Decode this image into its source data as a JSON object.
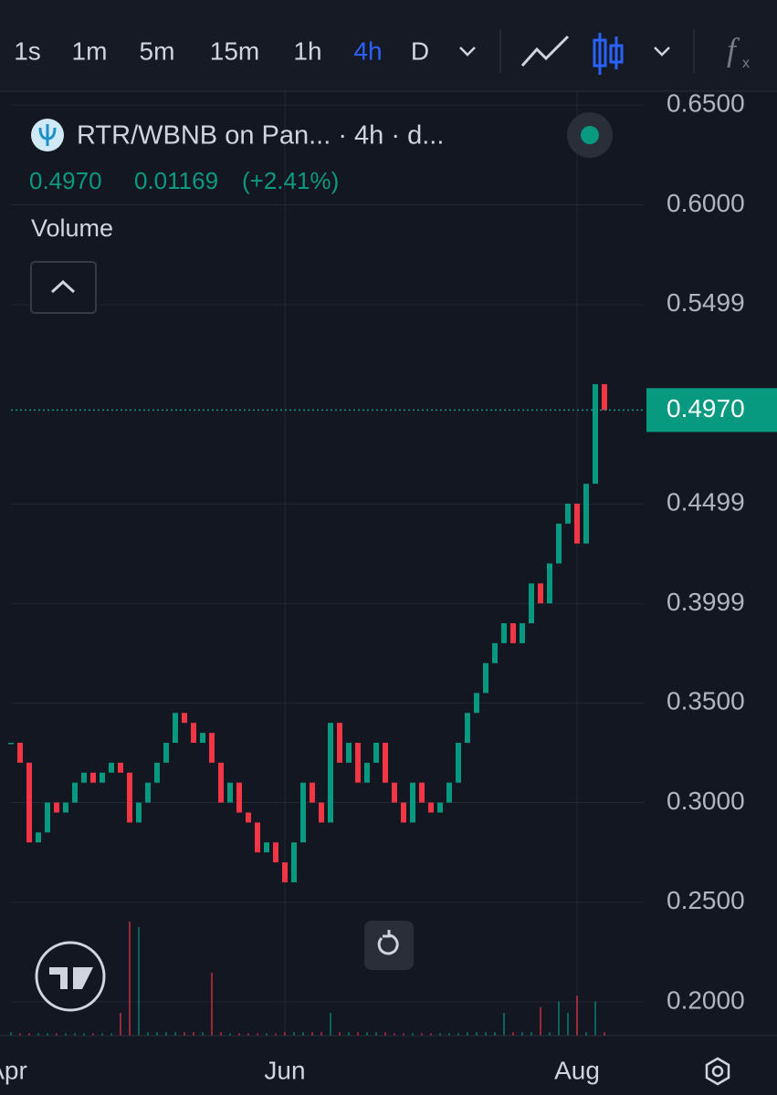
{
  "toolbar": {
    "intervals": [
      "1s",
      "1m",
      "5m",
      "15m",
      "1h",
      "4h",
      "D"
    ],
    "active": "4h"
  },
  "chart_data": {
    "type": "candlestick",
    "title": "RTR/WBNB on Pan... · 4h · d...",
    "last": {
      "value": 0.497,
      "label": "0.4970"
    },
    "change": "0.01169",
    "change_pct": "(+2.41%)",
    "volume_label": "Volume",
    "values": [
      0.33,
      0.32,
      0.28,
      0.285,
      0.3,
      0.295,
      0.3,
      0.31,
      0.315,
      0.31,
      0.315,
      0.32,
      0.315,
      0.29,
      0.3,
      0.31,
      0.32,
      0.33,
      0.345,
      0.34,
      0.33,
      0.335,
      0.32,
      0.3,
      0.31,
      0.295,
      0.29,
      0.275,
      0.28,
      0.27,
      0.26,
      0.28,
      0.31,
      0.3,
      0.29,
      0.34,
      0.32,
      0.33,
      0.31,
      0.32,
      0.33,
      0.31,
      0.3,
      0.29,
      0.31,
      0.3,
      0.295,
      0.3,
      0.31,
      0.33,
      0.345,
      0.355,
      0.37,
      0.38,
      0.39,
      0.38,
      0.39,
      0.41,
      0.4,
      0.42,
      0.44,
      0.45,
      0.43,
      0.46,
      0.51,
      0.497
    ],
    "volume": [
      3,
      2,
      2,
      2,
      2,
      2,
      2,
      2,
      2,
      2,
      2,
      2,
      20,
      100,
      95,
      3,
      3,
      3,
      3,
      3,
      3,
      3,
      55,
      3,
      2,
      2,
      2,
      2,
      2,
      2,
      3,
      3,
      3,
      3,
      3,
      20,
      3,
      3,
      3,
      3,
      3,
      3,
      2,
      2,
      2,
      2,
      2,
      2,
      2,
      2,
      3,
      3,
      3,
      3,
      20,
      3,
      3,
      3,
      25,
      3,
      30,
      20,
      35,
      3,
      30,
      3
    ],
    "volume_lim": [
      0,
      100
    ],
    "up_color": "#089981",
    "down_color": "#f23645",
    "ylim": [
      0.183,
      0.657
    ],
    "yticks": [
      {
        "value": 0.65,
        "label": "0.6500"
      },
      {
        "value": 0.6,
        "label": "0.6000"
      },
      0.5499,
      0.4499,
      0.3999,
      {
        "value": 0.35,
        "label": "0.3500"
      },
      {
        "value": 0.3,
        "label": "0.3000"
      },
      {
        "value": 0.25,
        "label": "0.2500"
      },
      {
        "value": 0.2,
        "label": "0.2000"
      }
    ],
    "xlim": [
      0,
      65
    ],
    "xticks": [
      {
        "value": -0.4,
        "label": "Apr"
      },
      {
        "value": 30,
        "label": "Jun"
      },
      {
        "value": 62,
        "label": "Aug"
      }
    ]
  }
}
